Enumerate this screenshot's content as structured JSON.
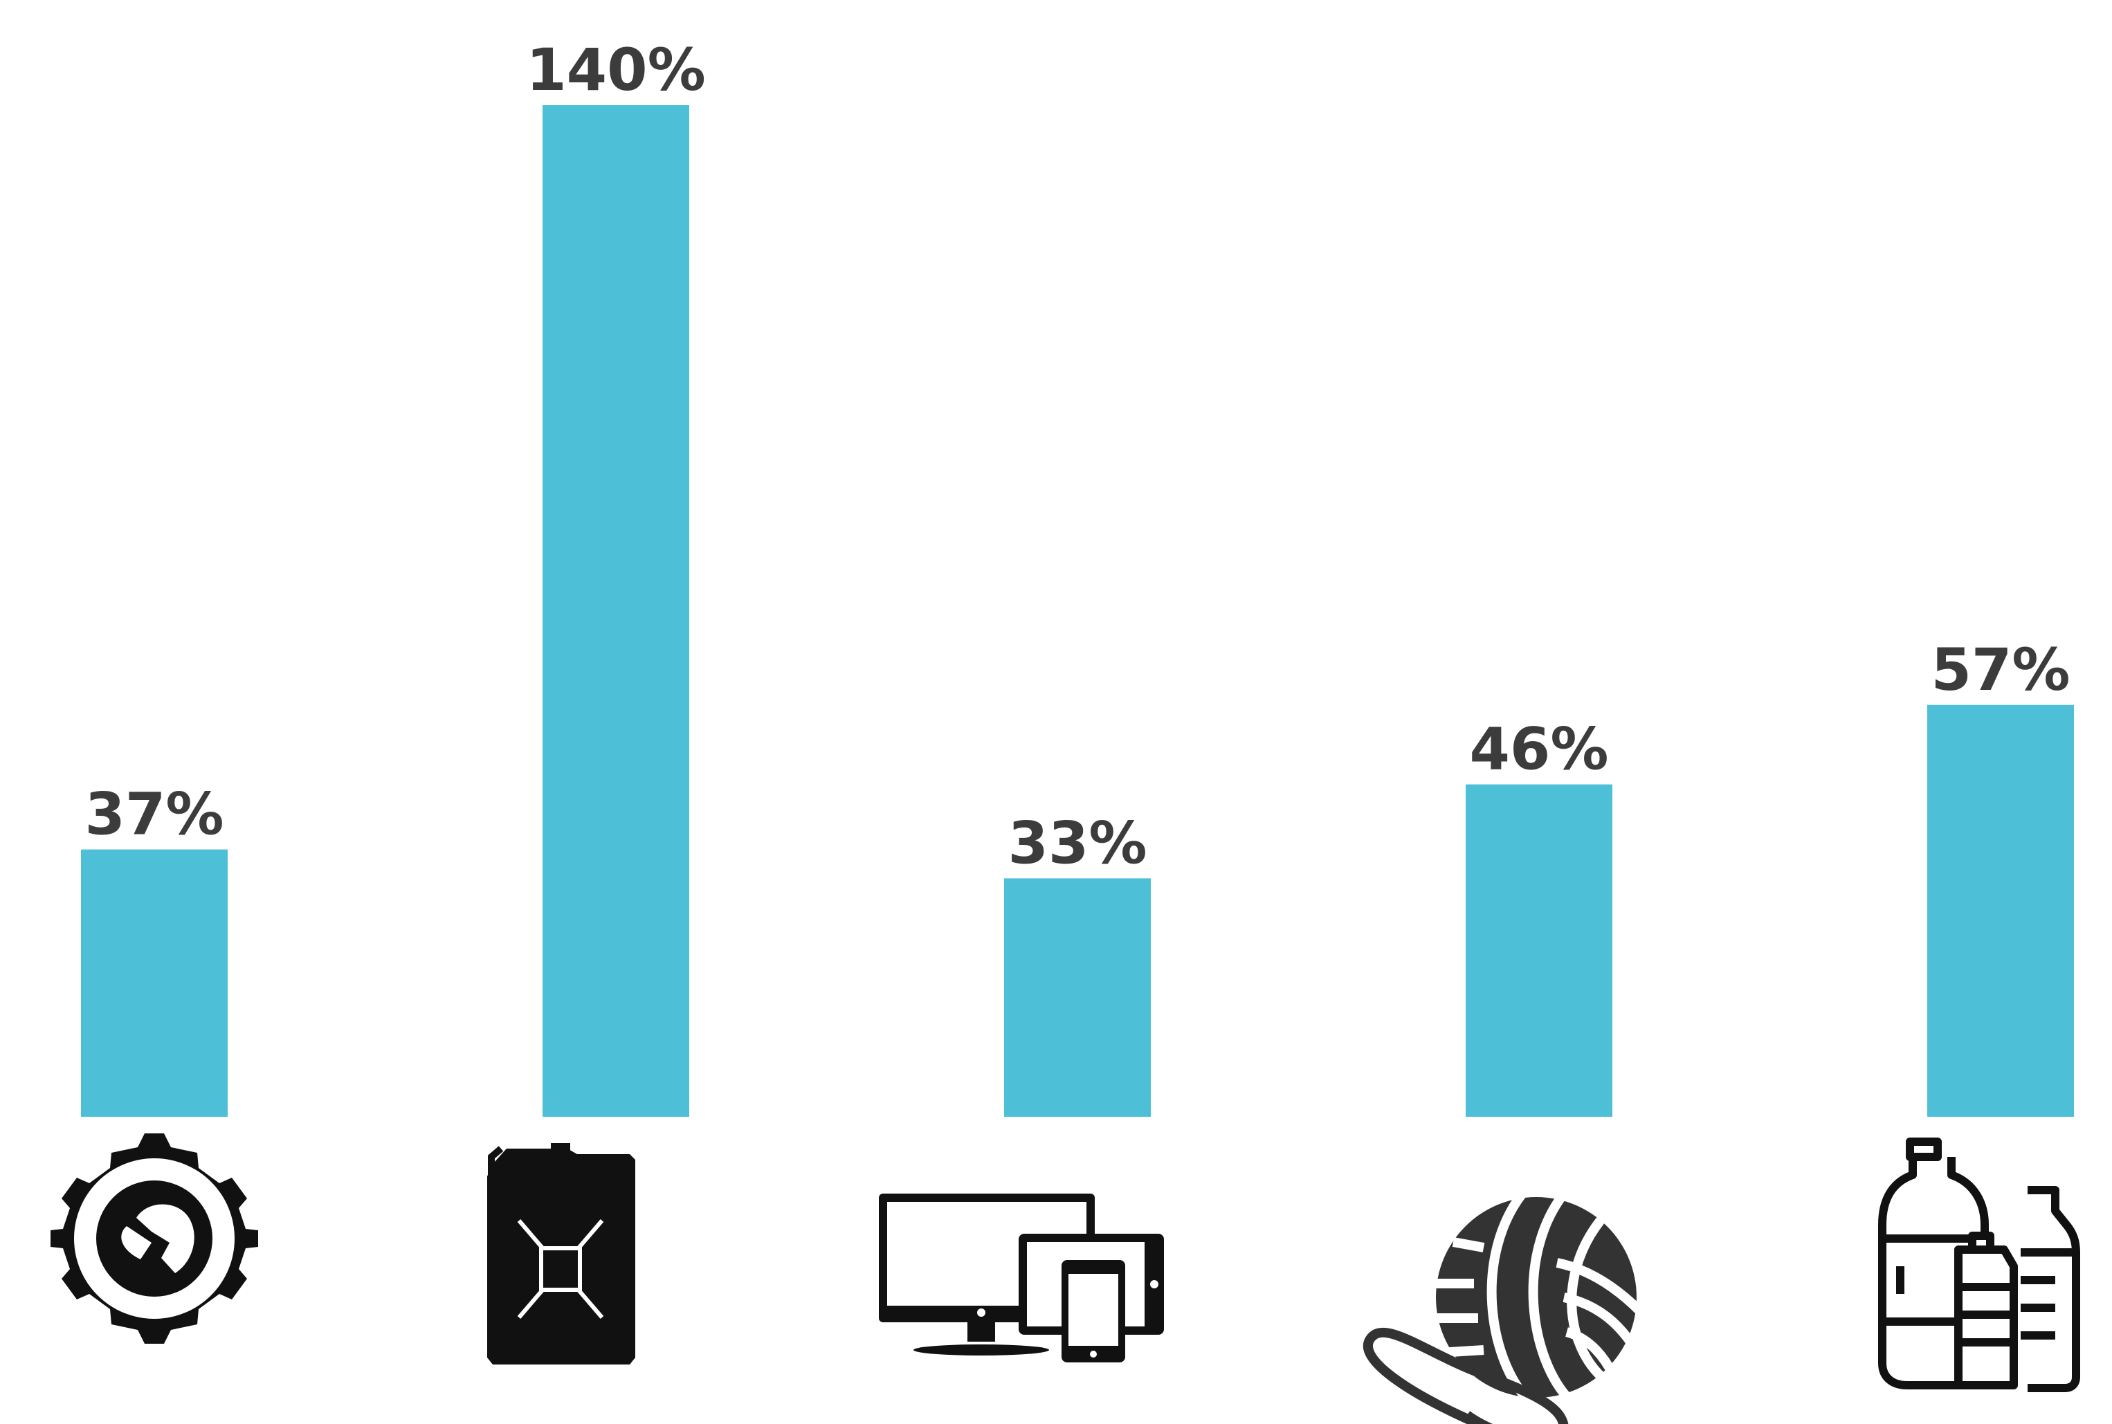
{
  "chart_data": {
    "type": "bar",
    "categories": [
      "Industry",
      "Fuel",
      "Electronics",
      "Textiles",
      "Plastic bottles"
    ],
    "values": [
      37,
      140,
      33,
      46,
      57
    ],
    "value_labels": [
      "37%",
      "140%",
      "33%",
      "46%",
      "57%"
    ],
    "icons": [
      "gear-wrench-icon",
      "jerrycan-icon",
      "devices-icon",
      "yarn-ball-icon",
      "plastic-bottles-icon"
    ],
    "title": "",
    "xlabel": "",
    "ylabel": "",
    "ylim": [
      0,
      150
    ],
    "grid": false,
    "legend": "none"
  },
  "colors": {
    "bar": "#4DC0D8",
    "label": "#3C3C3C",
    "icon": "#111111"
  }
}
